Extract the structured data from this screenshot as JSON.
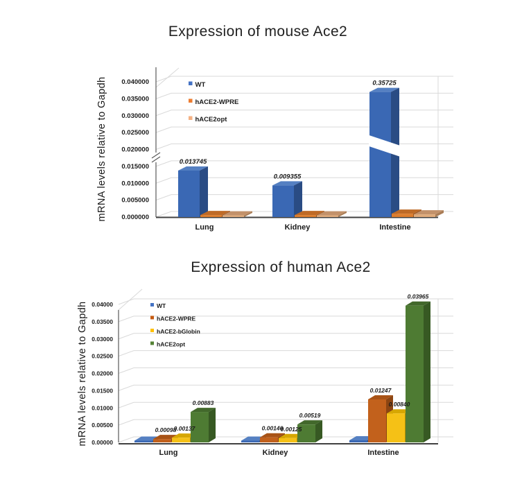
{
  "page": {
    "background": "#ffffff",
    "text_color": "#1a1a1a"
  },
  "chart_data": [
    {
      "type": "bar",
      "style": "3d-clustered-column",
      "title": "Expression of mouse Ace2",
      "ylabel": "mRNA levels relative to Gapdh",
      "xlabel": "",
      "ylim": [
        0,
        0.04
      ],
      "grid": true,
      "legend_position": "top-left-inside",
      "y_tick_labels": [
        "0.000000",
        "0.005000",
        "0.010000",
        "0.015000",
        "0.020000",
        "0.025000",
        "0.030000",
        "0.035000",
        "0.040000"
      ],
      "axis_break_between": [
        "0.015000",
        "0.020000"
      ],
      "categories": [
        "Lung",
        "Kidney",
        "Intestine"
      ],
      "legend": [
        {
          "label": "WT",
          "color": "#4472C4"
        },
        {
          "label": "hACE2-WPRE",
          "color": "#ED7D31"
        },
        {
          "label": "hACE2opt",
          "color": "#F4B183"
        }
      ],
      "series": [
        {
          "name": "WT",
          "colors": {
            "front": "#3A68B4",
            "top": "#5580C2",
            "side": "#2A4C84"
          },
          "values": [
            0.013745,
            0.009355,
            0.35725
          ],
          "labels": [
            "0.013745",
            "0.009355",
            "0.35725"
          ],
          "broken": [
            false,
            false,
            true
          ],
          "display_values": [
            0.013745,
            0.009355,
            0.037
          ]
        },
        {
          "name": "hACE2-WPRE",
          "colors": {
            "front": "#DD7E2E",
            "top": "#BE6A26",
            "side": "#A0581F"
          },
          "values": [
            0.0006,
            0.0006,
            0.001
          ],
          "labels": [
            null,
            null,
            null
          ]
        },
        {
          "name": "hACE2opt",
          "colors": {
            "front": "#DFAB7C",
            "top": "#C2916A",
            "side": "#A97C55"
          },
          "values": [
            0.0005,
            0.0005,
            0.0008
          ],
          "labels": [
            null,
            null,
            null
          ]
        }
      ]
    },
    {
      "type": "bar",
      "style": "3d-clustered-column",
      "title": "Expression of human Ace2",
      "ylabel": "mRNA levels relative to Gapdh",
      "xlabel": "",
      "ylim": [
        0,
        0.04
      ],
      "grid": true,
      "legend_position": "top-left-inside",
      "y_tick_labels": [
        "0.00000",
        "0.00500",
        "0.01000",
        "0.01500",
        "0.02000",
        "0.02500",
        "0.03000",
        "0.03500",
        "0.04000"
      ],
      "categories": [
        "Lung",
        "Kidney",
        "Intestine"
      ],
      "legend": [
        {
          "label": "WT",
          "color": "#4472C4"
        },
        {
          "label": "hACE2-WPRE",
          "color": "#C55A11"
        },
        {
          "label": "hACE2-bGlobin",
          "color": "#FFC000"
        },
        {
          "label": "hACE2opt",
          "color": "#548235"
        }
      ],
      "series": [
        {
          "name": "WT",
          "colors": {
            "front": "#3A68B4",
            "top": "#5580C2",
            "side": "#2A4C84"
          },
          "values": [
            0.0005,
            0.0005,
            0.0006
          ],
          "labels": [
            null,
            null,
            null
          ]
        },
        {
          "name": "hACE2-WPRE",
          "colors": {
            "front": "#C2611C",
            "top": "#A85316",
            "side": "#8C4512"
          },
          "values": [
            0.00098,
            0.00146,
            0.01247
          ],
          "labels": [
            "0.00098",
            "0.00146",
            "0.01247"
          ]
        },
        {
          "name": "hACE2-bGlobin",
          "colors": {
            "front": "#F5C116",
            "top": "#D6A703",
            "side": "#B78F00"
          },
          "values": [
            0.00137,
            0.00125,
            0.0084
          ],
          "labels": [
            "0.00137",
            "0.00125",
            "0.00840"
          ]
        },
        {
          "name": "hACE2opt",
          "colors": {
            "front": "#4E7B33",
            "top": "#42682B",
            "side": "#375923"
          },
          "values": [
            0.00883,
            0.00519,
            0.03965
          ],
          "labels": [
            "0.00883",
            "0.00519",
            "0.03965"
          ]
        }
      ]
    }
  ]
}
